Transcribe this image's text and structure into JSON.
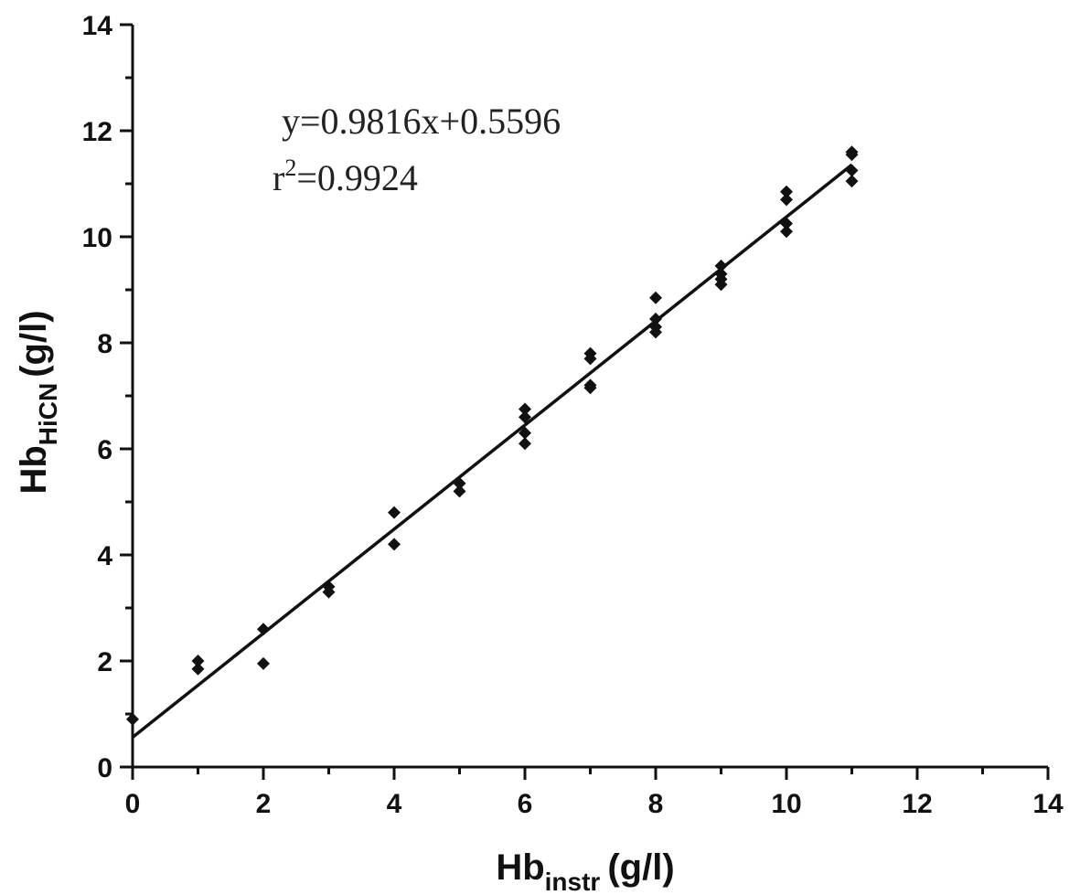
{
  "chart_data": {
    "type": "scatter",
    "xlim": [
      0,
      14
    ],
    "ylim": [
      0,
      14
    ],
    "x_ticks": [
      0,
      2,
      4,
      6,
      8,
      10,
      12,
      14
    ],
    "y_ticks": [
      0,
      2,
      4,
      6,
      8,
      10,
      12,
      14
    ],
    "xlabel": {
      "main": "Hb",
      "sub": "instr",
      "unit": "(g/l)"
    },
    "ylabel": {
      "main": "Hb",
      "sub": "HiCN",
      "unit": "(g/l)"
    },
    "grid": false,
    "annotations": {
      "equation": "y=0.9816x+0.5596",
      "r2_prefix": "r",
      "r2_sup": "2",
      "r2_value": "=0.9924"
    },
    "fit": {
      "slope": 0.9816,
      "intercept": 0.5596,
      "x_range": [
        0,
        11
      ]
    },
    "points": [
      {
        "x": 0,
        "y": 0.9
      },
      {
        "x": 1,
        "y": 2.0
      },
      {
        "x": 1,
        "y": 1.85
      },
      {
        "x": 2,
        "y": 2.6
      },
      {
        "x": 2,
        "y": 1.95
      },
      {
        "x": 3,
        "y": 3.4
      },
      {
        "x": 3,
        "y": 3.3
      },
      {
        "x": 4,
        "y": 4.8
      },
      {
        "x": 4,
        "y": 4.2
      },
      {
        "x": 5,
        "y": 5.35
      },
      {
        "x": 5,
        "y": 5.2
      },
      {
        "x": 6,
        "y": 6.75
      },
      {
        "x": 6,
        "y": 6.6
      },
      {
        "x": 6,
        "y": 6.3
      },
      {
        "x": 6,
        "y": 6.1
      },
      {
        "x": 7,
        "y": 7.8
      },
      {
        "x": 7,
        "y": 7.7
      },
      {
        "x": 7,
        "y": 7.2
      },
      {
        "x": 7,
        "y": 7.15
      },
      {
        "x": 8,
        "y": 8.85
      },
      {
        "x": 8,
        "y": 8.45
      },
      {
        "x": 8,
        "y": 8.3
      },
      {
        "x": 8,
        "y": 8.2
      },
      {
        "x": 9,
        "y": 9.45
      },
      {
        "x": 9,
        "y": 9.3
      },
      {
        "x": 9,
        "y": 9.2
      },
      {
        "x": 9,
        "y": 9.1
      },
      {
        "x": 10,
        "y": 10.85
      },
      {
        "x": 10,
        "y": 10.7
      },
      {
        "x": 10,
        "y": 10.25
      },
      {
        "x": 10,
        "y": 10.1
      },
      {
        "x": 11,
        "y": 11.6
      },
      {
        "x": 11,
        "y": 11.55
      },
      {
        "x": 11,
        "y": 11.25
      },
      {
        "x": 11,
        "y": 11.05
      }
    ]
  }
}
